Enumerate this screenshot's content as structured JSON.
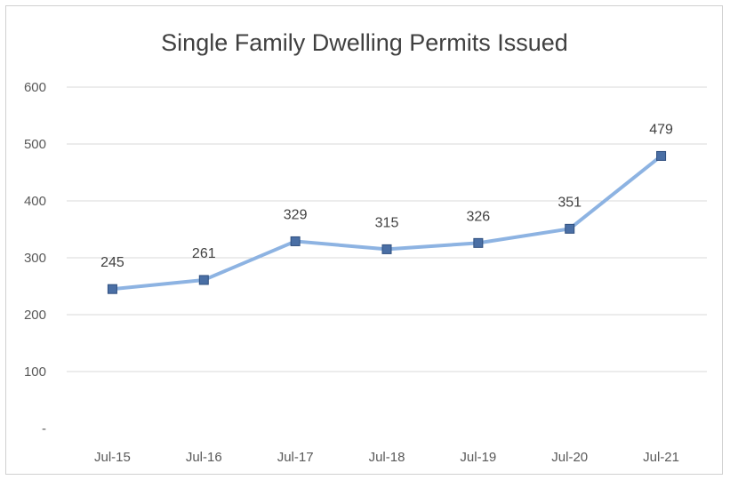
{
  "chart_data": {
    "type": "line",
    "title": "Single Family Dwelling Permits Issued",
    "categories": [
      "Jul-15",
      "Jul-16",
      "Jul-17",
      "Jul-18",
      "Jul-19",
      "Jul-20",
      "Jul-21"
    ],
    "series": [
      {
        "values": [
          245,
          261,
          329,
          315,
          326,
          351,
          479
        ],
        "color": "#8db3e2",
        "marker_color": "#4a6fa5"
      }
    ],
    "data_labels": [
      "245",
      "261",
      "329",
      "315",
      "326",
      "351",
      "479"
    ],
    "ylim": [
      0,
      600
    ],
    "yticks": [
      0,
      100,
      200,
      300,
      400,
      500,
      600
    ],
    "ytick_labels": [
      "-",
      "100",
      "200",
      "300",
      "400",
      "500",
      "600"
    ],
    "grid": true,
    "legend": "none"
  }
}
